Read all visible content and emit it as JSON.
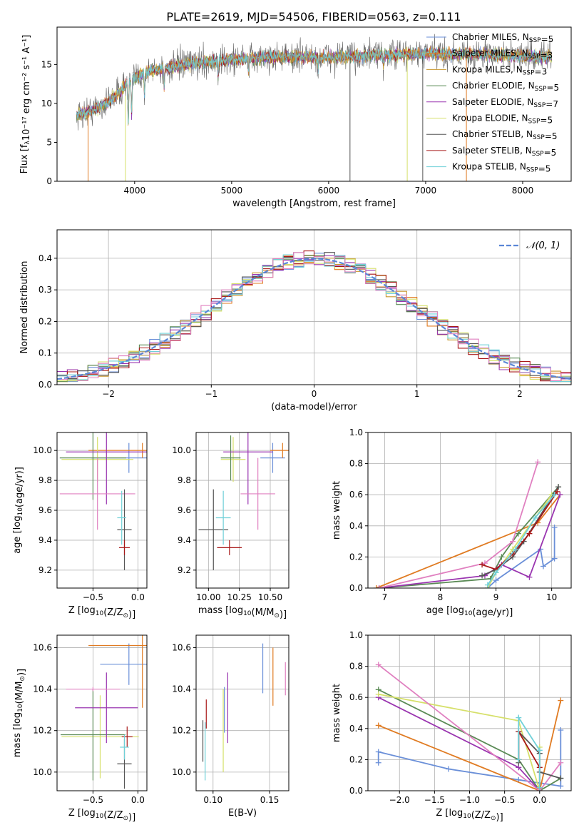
{
  "page_title": "PLATE=2619, MJD=54506, FIBERID=0563, z=0.111",
  "colors": {
    "Chabrier MILES": "#6a8fd8",
    "Salpeter MILES": "#e07b22",
    "Kroupa MILES": "#c8962c",
    "Chabrier ELODIE": "#5a8a55",
    "Salpeter ELODIE": "#9a35b0",
    "Kroupa ELODIE": "#d6e06a",
    "Chabrier STELIB": "#555555",
    "Salpeter STELIB": "#a81818",
    "Kroupa STELIB": "#6fd0d8",
    "extra_pink": "#e080c0",
    "normal_curve": "#5a86d6"
  },
  "chart_data": [
    {
      "id": "spectrum",
      "type": "line",
      "title": "PLATE=2619, MJD=54506, FIBERID=0563, z=0.111",
      "xlabel": "wavelength [Angstrom, rest frame]",
      "ylabel": "Flux [fλ10⁻¹⁷ erg cm⁻² s⁻¹ A⁻¹]",
      "xlim": [
        3200,
        8500
      ],
      "ylim": [
        0,
        19.8
      ],
      "xticks": [
        4000,
        5000,
        6000,
        7000,
        8000
      ],
      "yticks": [
        0,
        5,
        10,
        15
      ],
      "grid": false,
      "legend_position": "top-right",
      "legend": [
        "Chabrier MILES, N_SSP=5",
        "Salpeter MILES, N_SSP=3",
        "Kroupa MILES, N_SSP=3",
        "Chabrier ELODIE, N_SSP=5",
        "Salpeter ELODIE, N_SSP=7",
        "Kroupa ELODIE, N_SSP=5",
        "Chabrier STELIB, N_SSP=5",
        "Salpeter STELIB, N_SSP=5",
        "Kroupa STELIB, N_SSP=5"
      ],
      "continuum": [
        [
          3400,
          8.5
        ],
        [
          3550,
          9.0
        ],
        [
          3700,
          10.0
        ],
        [
          3800,
          11.0
        ],
        [
          3950,
          12.8
        ],
        [
          4100,
          14.0
        ],
        [
          4300,
          14.5
        ],
        [
          4600,
          15.2
        ],
        [
          5000,
          15.6
        ],
        [
          5500,
          16.0
        ],
        [
          6000,
          15.9
        ],
        [
          6500,
          16.2
        ],
        [
          7000,
          16.4
        ],
        [
          7500,
          16.3
        ],
        [
          8000,
          16.1
        ],
        [
          8300,
          15.9
        ]
      ],
      "absorption_features": [
        [
          3934,
          5.5
        ],
        [
          3969,
          4.5
        ],
        [
          4102,
          3.0
        ],
        [
          4305,
          2.5
        ],
        [
          4861,
          2.0
        ],
        [
          5175,
          1.8
        ],
        [
          5892,
          1.5
        ],
        [
          6563,
          1.2
        ]
      ],
      "drops": [
        {
          "x": 3520,
          "from": 8.5
        },
        {
          "x": 3905,
          "from": 11.0
        },
        {
          "x": 6220,
          "from": 16.0
        },
        {
          "x": 6810,
          "from": 16.0
        },
        {
          "x": 6970,
          "from": 16.0
        },
        {
          "x": 7420,
          "from": 16.0
        }
      ]
    },
    {
      "id": "residuals",
      "type": "line",
      "xlabel": "(data-model)/error",
      "ylabel": "Normed distribution",
      "xlim": [
        -2.5,
        2.5
      ],
      "ylim": [
        0,
        0.49
      ],
      "xticks": [
        -2,
        -1,
        0,
        1,
        2
      ],
      "yticks": [
        0.0,
        0.1,
        0.2,
        0.3,
        0.4
      ],
      "grid": true,
      "legend_position": "top-right",
      "legend": [
        "𝒩(0, 1)"
      ],
      "bin_width": 0.1
    },
    {
      "id": "age_vs_Z",
      "type": "scatter",
      "xlabel": "Z [log10(Z/Z⊙)]",
      "ylabel": "age  [log10(age/yr)]",
      "xlim": [
        -0.9,
        0.1
      ],
      "ylim": [
        9.08,
        10.12
      ],
      "xticks": [
        -0.5,
        0.0
      ],
      "yticks": [
        9.2,
        9.4,
        9.6,
        9.8,
        10.0
      ],
      "grid": true,
      "points": [
        {
          "series": "Chabrier MILES",
          "x": -0.1,
          "y": 9.95,
          "xerr": 0.42,
          "yerr": 0.1
        },
        {
          "series": "Salpeter MILES",
          "x": 0.05,
          "y": 10.0,
          "xerr": 0.6,
          "yerr": 0.05
        },
        {
          "series": "Kroupa ELODIE",
          "x": -0.45,
          "y": 9.94,
          "xerr": 0.4,
          "yerr": 0.15
        },
        {
          "series": "Chabrier ELODIE",
          "x": -0.5,
          "y": 9.95,
          "xerr": 0.37,
          "yerr": 0.28
        },
        {
          "series": "Salpeter ELODIE",
          "x": -0.35,
          "y": 9.99,
          "xerr": 0.45,
          "yerr": 0.35
        },
        {
          "series": "extra_pink",
          "x": -0.45,
          "y": 9.71,
          "xerr": 0.42,
          "yerr": 0.24
        },
        {
          "series": "Chabrier STELIB",
          "x": -0.15,
          "y": 9.47,
          "xerr": 0.08,
          "yerr": 0.27
        },
        {
          "series": "Salpeter STELIB",
          "x": -0.15,
          "y": 9.35,
          "xerr": 0.06,
          "yerr": 0.05
        },
        {
          "series": "Kroupa STELIB",
          "x": -0.18,
          "y": 9.55,
          "xerr": 0.05,
          "yerr": 0.18
        }
      ]
    },
    {
      "id": "age_vs_mass",
      "type": "scatter",
      "xlabel": "mass [log10(M/M⊙)]",
      "ylabel": "",
      "xlim": [
        9.9,
        10.65
      ],
      "ylim": [
        9.08,
        10.12
      ],
      "xticks": [
        10.0,
        10.25,
        10.5
      ],
      "yticks": [
        9.2,
        9.4,
        9.6,
        9.8,
        10.0
      ],
      "grid": true,
      "points": [
        {
          "series": "Chabrier MILES",
          "x": 10.52,
          "y": 9.95,
          "xerr": 0.1,
          "yerr": 0.1
        },
        {
          "series": "Salpeter MILES",
          "x": 10.6,
          "y": 10.0,
          "xerr": 0.1,
          "yerr": 0.05
        },
        {
          "series": "Kroupa ELODIE",
          "x": 10.2,
          "y": 9.94,
          "xerr": 0.1,
          "yerr": 0.15
        },
        {
          "series": "Chabrier ELODIE",
          "x": 10.18,
          "y": 9.95,
          "xerr": 0.08,
          "yerr": 0.15
        },
        {
          "series": "Salpeter ELODIE",
          "x": 10.32,
          "y": 9.99,
          "xerr": 0.2,
          "yerr": 0.35
        },
        {
          "series": "extra_pink",
          "x": 10.4,
          "y": 9.71,
          "xerr": 0.14,
          "yerr": 0.24
        },
        {
          "series": "Chabrier STELIB",
          "x": 10.04,
          "y": 9.47,
          "xerr": 0.12,
          "yerr": 0.27
        },
        {
          "series": "Salpeter STELIB",
          "x": 10.17,
          "y": 9.35,
          "xerr": 0.1,
          "yerr": 0.05
        },
        {
          "series": "Kroupa STELIB",
          "x": 10.12,
          "y": 9.55,
          "xerr": 0.06,
          "yerr": 0.18
        }
      ]
    },
    {
      "id": "weight_vs_age",
      "type": "line",
      "xlabel": "age  [log10(age/yr)]",
      "ylabel": "mass weight",
      "xlim": [
        6.7,
        10.35
      ],
      "ylim": [
        0,
        1.0
      ],
      "xticks": [
        7,
        8,
        9,
        10
      ],
      "yticks": [
        0.0,
        0.2,
        0.4,
        0.6,
        0.8,
        1.0
      ],
      "grid": true,
      "series": [
        {
          "name": "Chabrier MILES",
          "x": [
            8.85,
            9.0,
            9.8,
            9.85,
            10.05,
            10.05
          ],
          "y": [
            0.0,
            0.05,
            0.25,
            0.14,
            0.19,
            0.39
          ]
        },
        {
          "name": "Salpeter MILES",
          "x": [
            6.85,
            9.75,
            10.15
          ],
          "y": [
            0.0,
            0.42,
            0.6
          ]
        },
        {
          "name": "Chabrier ELODIE",
          "x": [
            6.9,
            8.9,
            9.1,
            9.4,
            10.12
          ],
          "y": [
            0.0,
            0.06,
            0.2,
            0.35,
            0.65
          ]
        },
        {
          "name": "Salpeter ELODIE",
          "x": [
            6.9,
            8.8,
            9.1,
            9.6,
            10.15
          ],
          "y": [
            0.0,
            0.08,
            0.15,
            0.07,
            0.6
          ]
        },
        {
          "name": "Kroupa ELODIE",
          "x": [
            8.85,
            9.0,
            9.3,
            10.0
          ],
          "y": [
            0.0,
            0.1,
            0.25,
            0.6
          ]
        },
        {
          "name": "extra_pink",
          "x": [
            6.9,
            8.8,
            9.3,
            9.75
          ],
          "y": [
            0.0,
            0.16,
            0.3,
            0.81
          ]
        },
        {
          "name": "Chabrier STELIB",
          "x": [
            8.75,
            9.0,
            9.3,
            9.5,
            10.12
          ],
          "y": [
            0.08,
            0.12,
            0.2,
            0.3,
            0.65
          ]
        },
        {
          "name": "Salpeter STELIB",
          "x": [
            8.75,
            9.0,
            9.3,
            9.6,
            10.1
          ],
          "y": [
            0.15,
            0.12,
            0.22,
            0.35,
            0.62
          ]
        },
        {
          "name": "Kroupa STELIB",
          "x": [
            8.85,
            9.0,
            9.35,
            9.7,
            10.05
          ],
          "y": [
            0.02,
            0.1,
            0.25,
            0.45,
            0.6
          ]
        }
      ]
    },
    {
      "id": "mass_vs_Z",
      "type": "scatter",
      "xlabel": "Z [log10(Z/Z⊙)]",
      "ylabel": "mass [log10(M/M⊙)]",
      "xlim": [
        -0.9,
        0.1
      ],
      "ylim": [
        9.91,
        10.66
      ],
      "xticks": [
        -0.5,
        0.0
      ],
      "yticks": [
        10.0,
        10.2,
        10.4,
        10.6
      ],
      "grid": true,
      "points": [
        {
          "series": "Chabrier MILES",
          "x": -0.1,
          "y": 10.52,
          "xerr": 0.32,
          "yerr": 0.1
        },
        {
          "series": "Salpeter MILES",
          "x": 0.05,
          "y": 10.61,
          "xerr": 0.6,
          "yerr": 0.3
        },
        {
          "series": "Kroupa ELODIE",
          "x": -0.42,
          "y": 10.17,
          "xerr": 0.43,
          "yerr": 0.2
        },
        {
          "series": "Chabrier ELODIE",
          "x": -0.5,
          "y": 10.18,
          "xerr": 0.36,
          "yerr": 0.22
        },
        {
          "series": "Salpeter ELODIE",
          "x": -0.35,
          "y": 10.31,
          "xerr": 0.35,
          "yerr": 0.17
        },
        {
          "series": "extra_pink",
          "x": -0.5,
          "y": 10.4,
          "xerr": 0.3,
          "yerr": 0.01
        },
        {
          "series": "Chabrier STELIB",
          "x": -0.15,
          "y": 10.04,
          "xerr": 0.08,
          "yerr": 0.12
        },
        {
          "series": "Salpeter STELIB",
          "x": -0.12,
          "y": 10.17,
          "xerr": 0.06,
          "yerr": 0.05
        },
        {
          "series": "Kroupa STELIB",
          "x": -0.15,
          "y": 10.12,
          "xerr": 0.05,
          "yerr": 0.06
        }
      ]
    },
    {
      "id": "mass_vs_ebv",
      "type": "scatter",
      "xlabel": "E(B-V)",
      "ylabel": "",
      "xlim": [
        0.085,
        0.167
      ],
      "ylim": [
        9.91,
        10.66
      ],
      "xticks": [
        0.1,
        0.15
      ],
      "yticks": [
        10.0,
        10.2,
        10.4,
        10.6
      ],
      "grid": true,
      "points": [
        {
          "series": "Chabrier STELIB",
          "x": 0.091,
          "y": 10.15,
          "yerr": 0.1
        },
        {
          "series": "Kroupa STELIB",
          "x": 0.093,
          "y": 10.1,
          "yerr": 0.14
        },
        {
          "series": "Salpeter STELIB",
          "x": 0.094,
          "y": 10.28,
          "yerr": 0.07
        },
        {
          "series": "Kroupa ELODIE",
          "x": 0.109,
          "y": 10.2,
          "yerr": 0.2
        },
        {
          "series": "Chabrier MILES",
          "x": 0.11,
          "y": 10.3,
          "yerr": 0.11
        },
        {
          "series": "Salpeter ELODIE",
          "x": 0.113,
          "y": 10.31,
          "yerr": 0.17
        },
        {
          "series": "Chabrier MILES",
          "x": 0.144,
          "y": 10.5,
          "yerr": 0.12
        },
        {
          "series": "Salpeter MILES",
          "x": 0.153,
          "y": 10.46,
          "yerr": 0.14
        },
        {
          "series": "extra_pink",
          "x": 0.164,
          "y": 10.45,
          "yerr": 0.08
        }
      ]
    },
    {
      "id": "weight_vs_Z",
      "type": "line",
      "xlabel": "Z [log10(Z/Z⊙)]",
      "ylabel": "mass weight",
      "xlim": [
        -2.45,
        0.45
      ],
      "ylim": [
        0,
        1.0
      ],
      "xticks": [
        -2.0,
        -1.5,
        -1.0,
        -0.5,
        0.0
      ],
      "yticks": [
        0.0,
        0.2,
        0.4,
        0.6,
        0.8,
        1.0
      ],
      "grid": true,
      "series": [
        {
          "name": "Chabrier MILES",
          "x": [
            -2.3,
            -2.3,
            -1.3,
            -0.3,
            0.0,
            0.3,
            0.3
          ],
          "y": [
            0.18,
            0.25,
            0.14,
            0.07,
            0.05,
            0.03,
            0.39
          ]
        },
        {
          "name": "Salpeter MILES",
          "x": [
            -2.3,
            0.0,
            0.3
          ],
          "y": [
            0.42,
            0.0,
            0.58
          ]
        },
        {
          "name": "Chabrier ELODIE",
          "x": [
            -2.3,
            -0.3,
            0.0,
            0.3
          ],
          "y": [
            0.65,
            0.2,
            0.0,
            0.08
          ]
        },
        {
          "name": "Salpeter ELODIE",
          "x": [
            -2.3,
            -0.3,
            0.0
          ],
          "y": [
            0.6,
            0.15,
            0.0
          ]
        },
        {
          "name": "Kroupa ELODIE",
          "x": [
            -2.3,
            -0.3,
            0.0,
            0.0
          ],
          "y": [
            0.62,
            0.45,
            0.0,
            0.28
          ]
        },
        {
          "name": "extra_pink",
          "x": [
            -2.3,
            0.0,
            0.3
          ],
          "y": [
            0.81,
            0.0,
            0.18
          ]
        },
        {
          "name": "Chabrier STELIB",
          "x": [
            -0.3,
            -0.3,
            0.0,
            0.0,
            0.3
          ],
          "y": [
            0.18,
            0.38,
            0.24,
            0.12,
            0.08
          ]
        },
        {
          "name": "Salpeter STELIB",
          "x": [
            -0.3,
            -0.3,
            0.0,
            0.0
          ],
          "y": [
            0.2,
            0.38,
            0.15,
            0.02
          ]
        },
        {
          "name": "Kroupa STELIB",
          "x": [
            -0.3,
            -0.3,
            0.0,
            0.0
          ],
          "y": [
            0.2,
            0.47,
            0.26,
            0.02
          ]
        }
      ]
    }
  ]
}
